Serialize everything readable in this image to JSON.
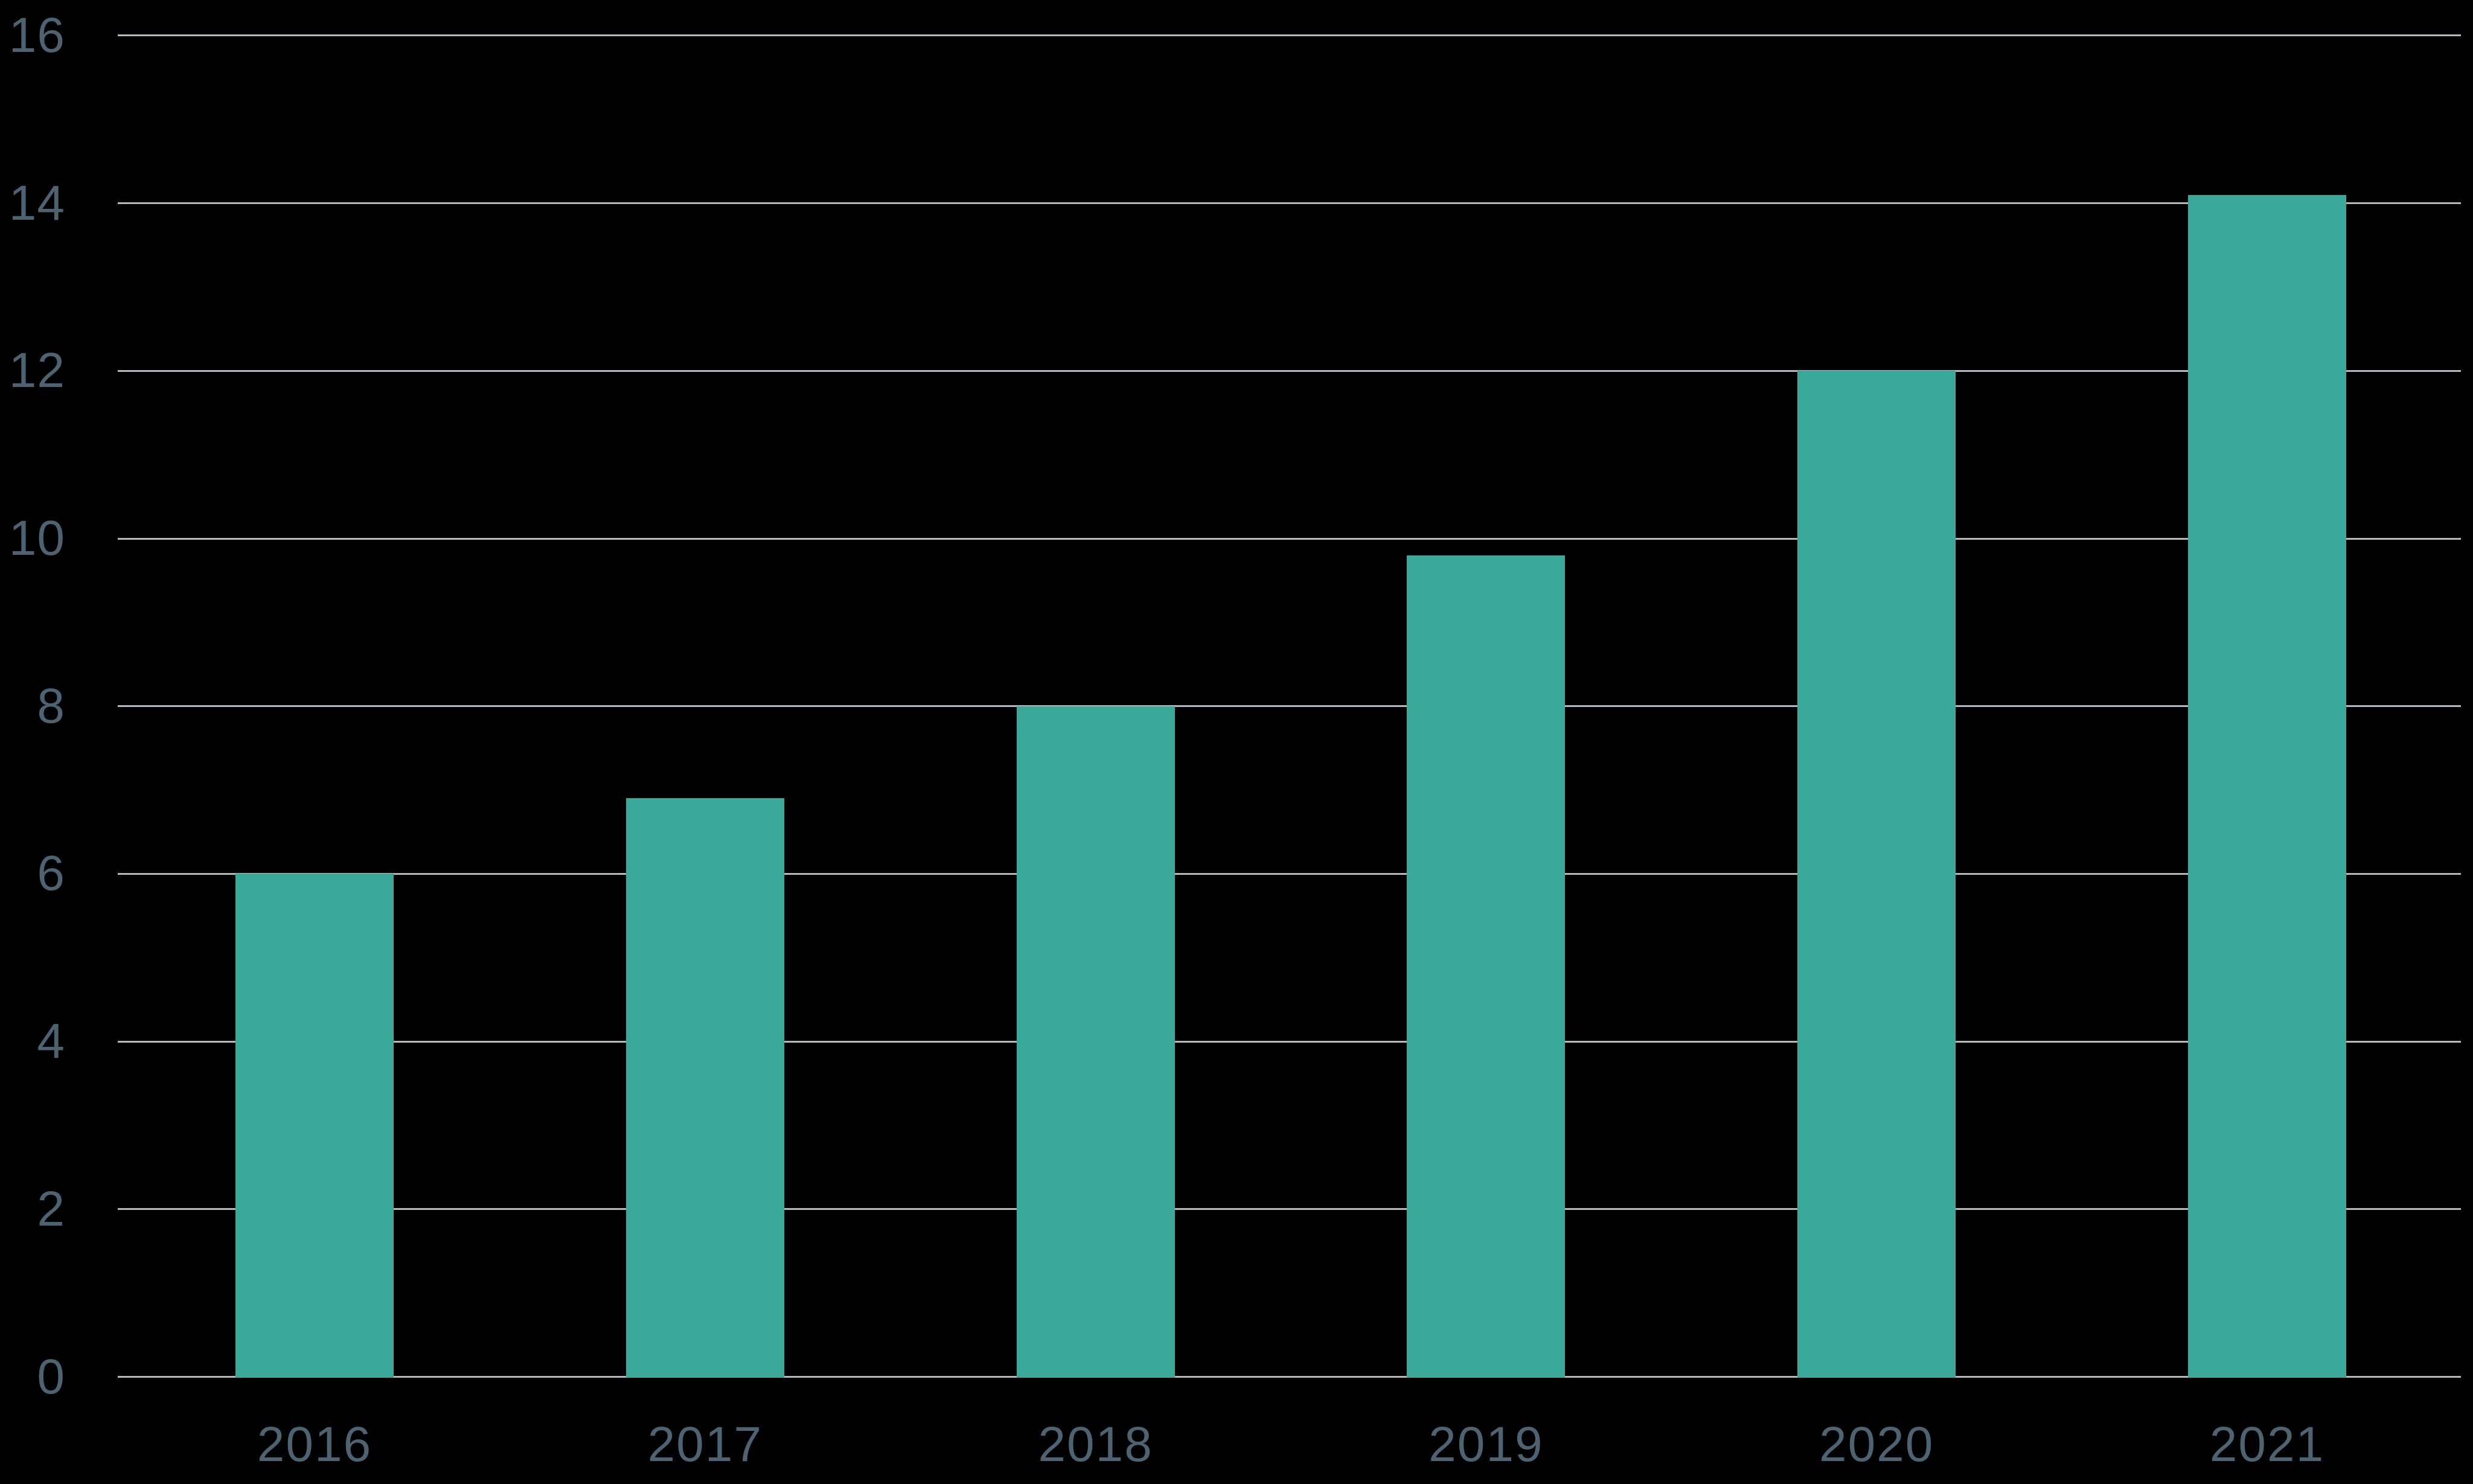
{
  "chart_data": {
    "type": "bar",
    "title": "",
    "xlabel": "",
    "ylabel": "",
    "categories": [
      "2016",
      "2017",
      "2018",
      "2019",
      "2020",
      "2021"
    ],
    "values": [
      6,
      6.9,
      8,
      9.8,
      12,
      14.1
    ],
    "ylim": [
      0,
      16
    ],
    "yticks": [
      0,
      2,
      4,
      6,
      8,
      10,
      12,
      14,
      16
    ],
    "ytick_labels": [
      "0",
      "2",
      "4",
      "6",
      "8",
      "10",
      "12",
      "14",
      "16"
    ],
    "grid": true,
    "legend": false,
    "colors": {
      "background": "#000000",
      "bar": "#3aa99a",
      "gridline": "#b2b9bf",
      "tick_label": "#4e6372"
    }
  }
}
